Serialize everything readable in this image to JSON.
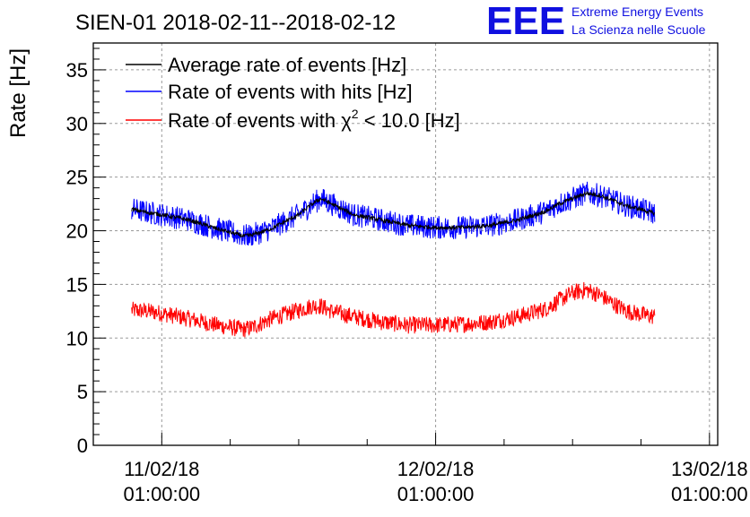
{
  "header": {
    "title": "SIEN-01 2018-02-11--2018-02-12",
    "logo_text": "EEE",
    "logo_line1": "Extreme Energy Events",
    "logo_line2": "La Scienza nelle Scuole"
  },
  "colors": {
    "logo": "#1010e0",
    "average": "#000000",
    "hits": "#0000ff",
    "chi2": "#ff0000",
    "grid": "#9a9a9a"
  },
  "chart_data": {
    "type": "line",
    "title": "SIEN-01 2018-02-11--2018-02-12",
    "xlabel": "",
    "ylabel": "Rate [Hz]",
    "xlim": [
      -0.25,
      2.03
    ],
    "ylim": [
      0,
      37.5
    ],
    "yticks": [
      0,
      5,
      10,
      15,
      20,
      25,
      30,
      35
    ],
    "xticks": [
      {
        "x": 0,
        "date": "11/02/18",
        "time": "01:00:00"
      },
      {
        "x": 1,
        "date": "12/02/18",
        "time": "01:00:00"
      },
      {
        "x": 2,
        "date": "13/02/18",
        "time": "01:00:00"
      }
    ],
    "grid": true,
    "legend_position": "top-left",
    "legend": [
      {
        "label": "Average rate of events [Hz]",
        "series": "average"
      },
      {
        "label": "Rate of events with hits [Hz]",
        "series": "hits"
      },
      {
        "label_pre": "Rate of events with ",
        "label_chi": "χ",
        "label_sup": "2",
        "label_post": " < 10.0 [Hz]",
        "series": "chi2"
      }
    ],
    "series": [
      {
        "name": "Average rate of events [Hz]",
        "key": "average",
        "noise": 0.2,
        "x": [
          -0.11,
          -0.05,
          0.0,
          0.1,
          0.2,
          0.3,
          0.33,
          0.4,
          0.5,
          0.55,
          0.58,
          0.62,
          0.7,
          0.8,
          0.9,
          1.0,
          1.1,
          1.2,
          1.3,
          1.4,
          1.45,
          1.5,
          1.55,
          1.6,
          1.65,
          1.7,
          1.75,
          1.8
        ],
        "y": [
          22.0,
          21.7,
          21.5,
          21.0,
          20.2,
          19.5,
          19.6,
          20.2,
          21.5,
          22.5,
          23.0,
          22.5,
          21.5,
          21.0,
          20.5,
          20.3,
          20.3,
          20.5,
          21.0,
          21.8,
          22.5,
          23.0,
          23.5,
          23.3,
          22.8,
          22.3,
          22.0,
          21.6
        ]
      },
      {
        "name": "Rate of events with hits [Hz]",
        "key": "hits",
        "noise": 1.1,
        "x": [
          -0.11,
          -0.05,
          0.0,
          0.1,
          0.2,
          0.3,
          0.33,
          0.4,
          0.5,
          0.55,
          0.58,
          0.62,
          0.7,
          0.8,
          0.9,
          1.0,
          1.1,
          1.2,
          1.3,
          1.4,
          1.45,
          1.5,
          1.55,
          1.6,
          1.65,
          1.7,
          1.75,
          1.8
        ],
        "y": [
          22.0,
          21.7,
          21.5,
          21.0,
          20.2,
          19.5,
          19.6,
          20.2,
          21.5,
          22.5,
          23.0,
          22.5,
          21.5,
          21.0,
          20.5,
          20.3,
          20.3,
          20.5,
          21.0,
          21.8,
          22.5,
          23.0,
          23.5,
          23.3,
          22.8,
          22.3,
          22.0,
          21.6
        ]
      },
      {
        "name": "Rate of events with χ2 < 10.0 [Hz]",
        "key": "chi2",
        "noise": 0.8,
        "x": [
          -0.11,
          -0.05,
          0.0,
          0.1,
          0.2,
          0.3,
          0.33,
          0.4,
          0.5,
          0.55,
          0.58,
          0.62,
          0.7,
          0.8,
          0.9,
          1.0,
          1.1,
          1.2,
          1.3,
          1.4,
          1.45,
          1.5,
          1.55,
          1.6,
          1.65,
          1.7,
          1.75,
          1.8
        ],
        "y": [
          12.6,
          12.5,
          12.3,
          11.8,
          11.2,
          10.8,
          11.0,
          11.8,
          12.6,
          13.0,
          13.0,
          12.5,
          12.0,
          11.5,
          11.2,
          11.2,
          11.3,
          11.5,
          12.0,
          12.7,
          13.5,
          14.2,
          14.5,
          14.0,
          13.2,
          12.5,
          12.2,
          12.0
        ]
      }
    ]
  }
}
